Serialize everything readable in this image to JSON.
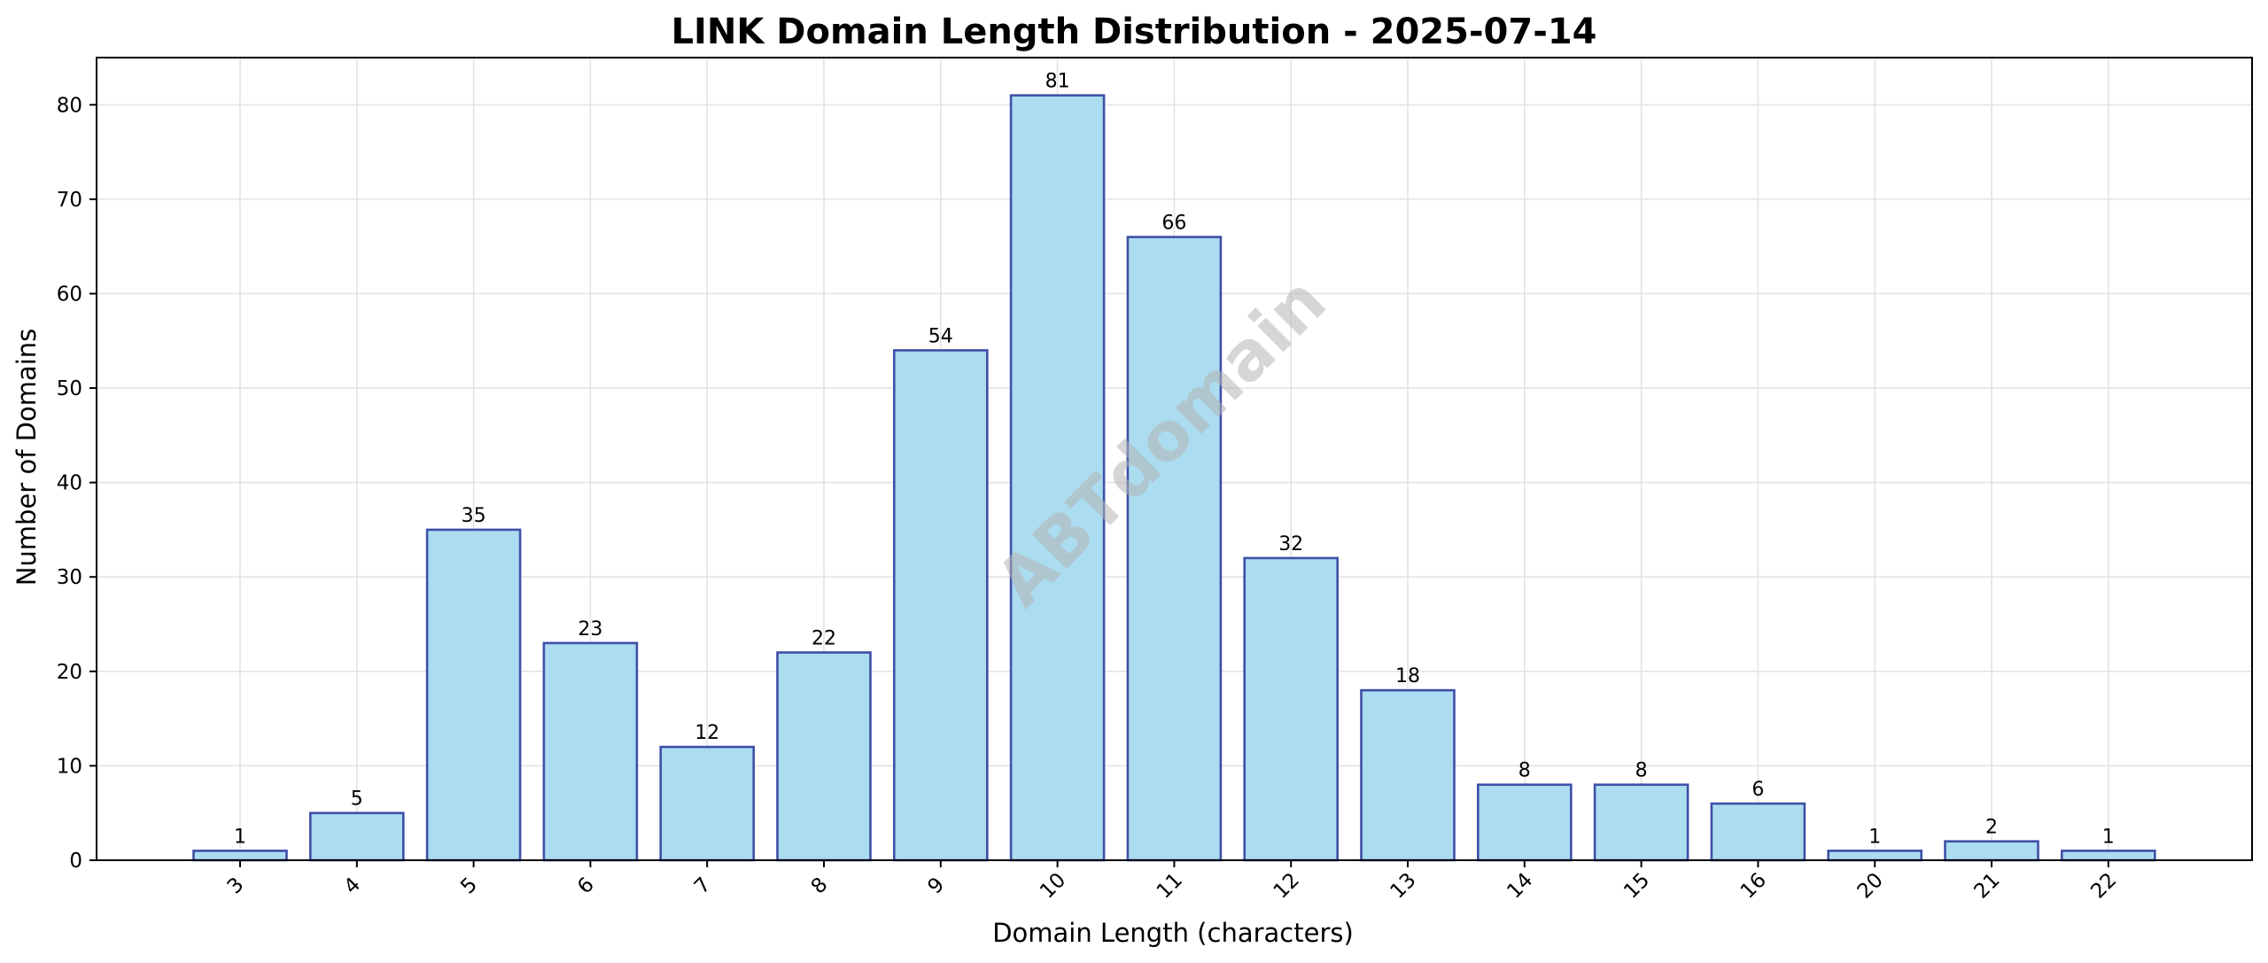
{
  "chart_data": {
    "type": "bar",
    "title": "LINK Domain Length Distribution - 2025-07-14",
    "xlabel": "Domain Length (characters)",
    "ylabel": "Number of Domains",
    "categories": [
      "3",
      "4",
      "5",
      "6",
      "7",
      "8",
      "9",
      "10",
      "11",
      "12",
      "13",
      "14",
      "15",
      "16",
      "20",
      "21",
      "22"
    ],
    "values": [
      1,
      5,
      35,
      23,
      12,
      22,
      54,
      81,
      66,
      32,
      18,
      8,
      8,
      6,
      1,
      2,
      1
    ],
    "data_labels": [
      "1",
      "5",
      "35",
      "23",
      "12",
      "22",
      "54",
      "81",
      "66",
      "32",
      "18",
      "8",
      "8",
      "6",
      "1",
      "2",
      "1"
    ],
    "ylim": [
      0,
      85
    ],
    "y_ticks": [
      0,
      10,
      20,
      30,
      40,
      50,
      60,
      70,
      80
    ],
    "grid": true,
    "watermark": "ABTdomain",
    "colors": {
      "bar_fill": "#abdcef",
      "bar_edge": "#3f4fa8"
    }
  }
}
